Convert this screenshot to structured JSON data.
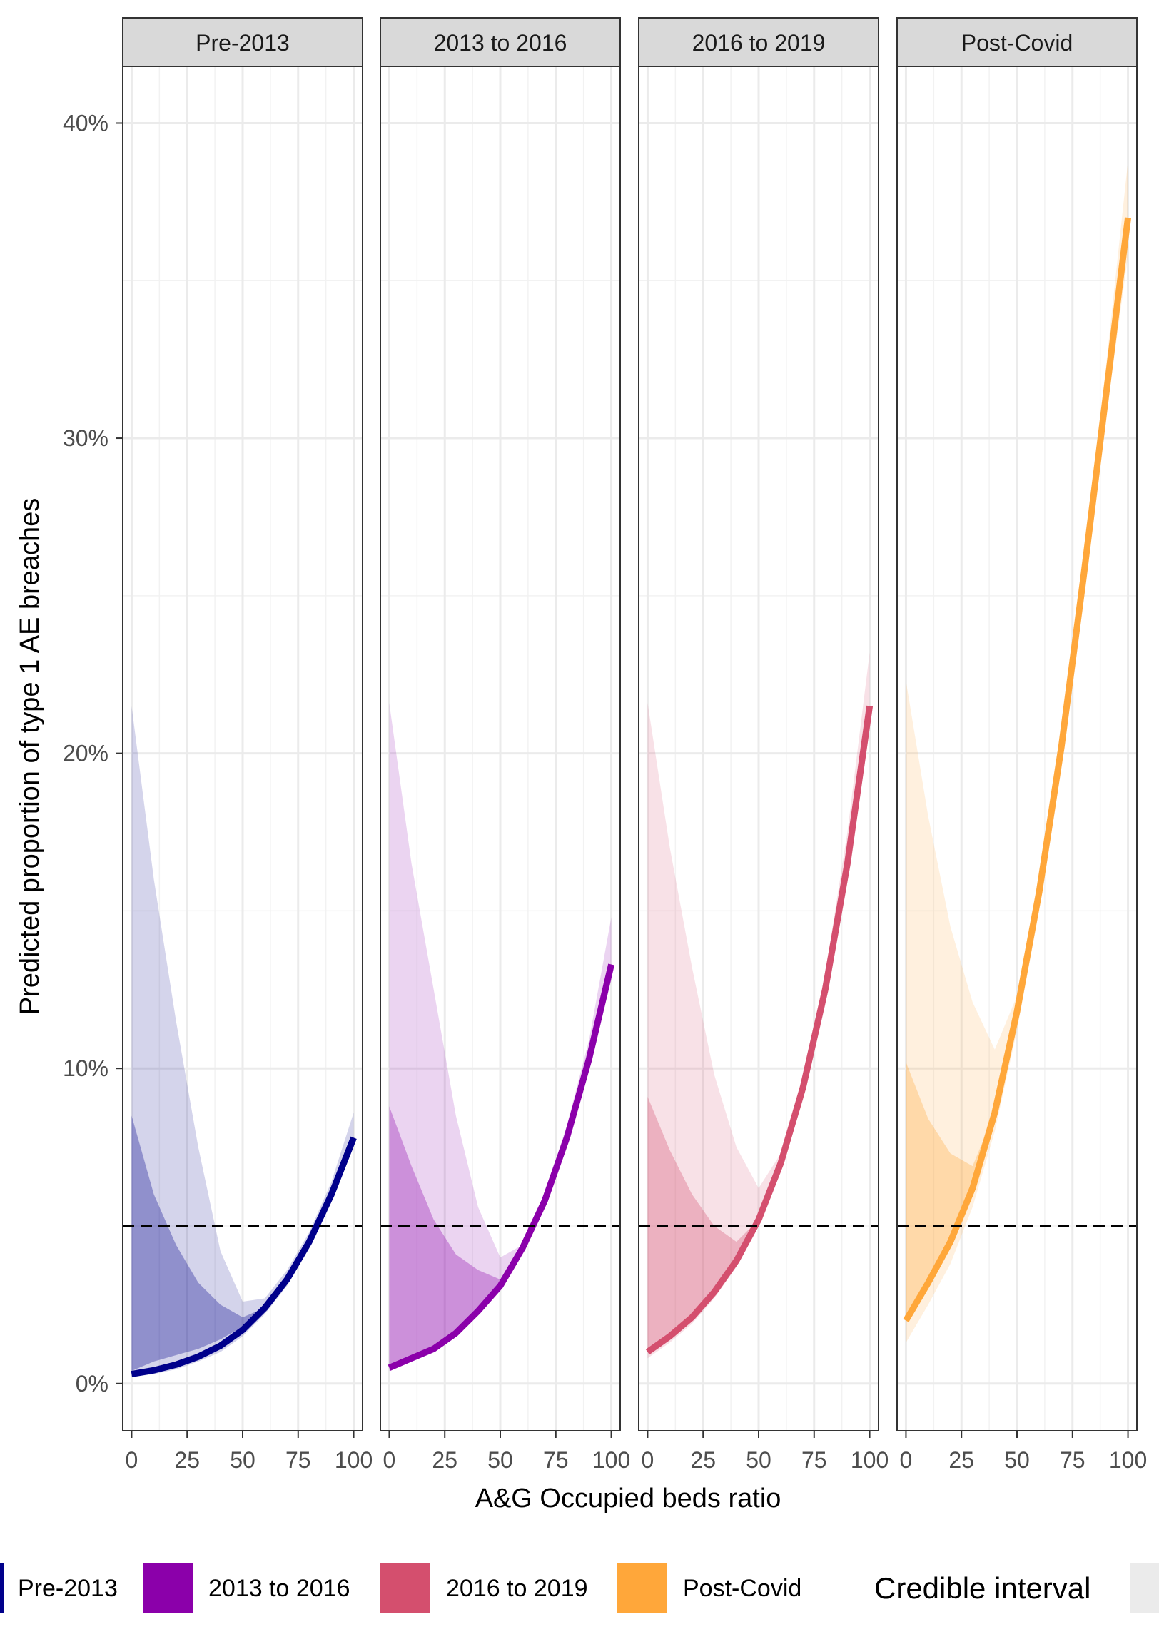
{
  "chart_data": {
    "type": "line",
    "ylabel": "Predicted proportion of type 1 AE breaches",
    "xlabel": "A&G Occupied beds ratio",
    "x_ticks": [
      "0",
      "25",
      "50",
      "75",
      "100"
    ],
    "y_ticks": [
      "0%",
      "10%",
      "20%",
      "30%",
      "40%"
    ],
    "xlim": [
      -4,
      104
    ],
    "ylim": [
      -1.5,
      41.8
    ],
    "grid": true,
    "reference_line": 5,
    "legend_position": "bottom",
    "legend_title": "Credible interval",
    "x": [
      0,
      10,
      20,
      30,
      40,
      50,
      60,
      70,
      80,
      90,
      100
    ],
    "panels": [
      {
        "name": "Pre-2013",
        "color": "#00008b",
        "line": [
          0.3,
          0.42,
          0.6,
          0.85,
          1.2,
          1.7,
          2.4,
          3.3,
          4.5,
          6.0,
          7.8
        ],
        "outer_lower": [
          0.2,
          0.3,
          0.45,
          0.7,
          1.0,
          1.5,
          2.2,
          3.1,
          4.3,
          5.8,
          7.5
        ],
        "outer_upper": [
          21.5,
          16.0,
          11.5,
          7.5,
          4.2,
          2.6,
          2.7,
          3.6,
          4.8,
          6.4,
          8.6
        ],
        "inner_lower": [
          0.4,
          0.7,
          0.9,
          1.1,
          1.4,
          1.8,
          2.4,
          3.3,
          4.5,
          6.0,
          7.8
        ],
        "inner_upper": [
          8.5,
          6.0,
          4.4,
          3.2,
          2.5,
          2.1,
          2.4,
          3.3,
          4.5,
          6.0,
          7.8
        ]
      },
      {
        "name": "2013 to 2016",
        "color": "#8b00aa",
        "line": [
          0.5,
          0.8,
          1.1,
          1.6,
          2.3,
          3.1,
          4.3,
          5.8,
          7.8,
          10.3,
          13.3
        ],
        "outer_lower": [
          0.4,
          0.7,
          1.0,
          1.5,
          2.2,
          3.0,
          4.1,
          5.6,
          7.5,
          10.0,
          12.8
        ],
        "outer_upper": [
          21.6,
          16.5,
          12.5,
          8.5,
          5.6,
          4.0,
          4.4,
          6.0,
          8.2,
          10.9,
          14.8
        ],
        "inner_lower": [
          0.6,
          0.9,
          1.2,
          1.7,
          2.3,
          3.1,
          4.3,
          5.8,
          7.8,
          10.3,
          13.3
        ],
        "inner_upper": [
          8.8,
          6.9,
          5.2,
          4.1,
          3.6,
          3.3,
          4.3,
          5.8,
          7.8,
          10.3,
          13.3
        ]
      },
      {
        "name": "2016 to 2019",
        "color": "#d44f6e",
        "line": [
          1.0,
          1.5,
          2.1,
          2.9,
          3.9,
          5.2,
          7.0,
          9.4,
          12.5,
          16.5,
          21.5
        ],
        "outer_lower": [
          0.8,
          1.3,
          1.9,
          2.7,
          3.7,
          5.0,
          6.7,
          9.0,
          12.0,
          16.0,
          20.8
        ],
        "outer_upper": [
          21.6,
          17.0,
          13.2,
          9.8,
          7.5,
          6.2,
          7.3,
          9.8,
          13.0,
          17.5,
          23.2
        ],
        "inner_lower": [
          1.1,
          1.6,
          2.2,
          3.0,
          4.0,
          5.2,
          7.0,
          9.4,
          12.5,
          16.5,
          21.5
        ],
        "inner_upper": [
          9.1,
          7.4,
          6.0,
          5.0,
          4.5,
          5.2,
          7.0,
          9.4,
          12.5,
          16.5,
          21.5
        ]
      },
      {
        "name": "Post-Covid",
        "color": "#ffa73a",
        "line": [
          2.0,
          3.2,
          4.5,
          6.2,
          8.6,
          11.8,
          15.6,
          20.2,
          25.6,
          31.3,
          37.0
        ],
        "outer_lower": [
          1.3,
          2.5,
          3.8,
          5.6,
          8.0,
          11.2,
          15.0,
          19.6,
          25.0,
          30.6,
          35.8
        ],
        "outer_upper": [
          22.3,
          18.0,
          14.5,
          12.1,
          10.6,
          12.3,
          16.2,
          20.8,
          26.3,
          32.2,
          38.8
        ],
        "inner_lower": [
          2.2,
          3.4,
          4.7,
          6.3,
          8.6,
          11.8,
          15.6,
          20.2,
          25.6,
          31.3,
          37.0
        ],
        "inner_upper": [
          10.2,
          8.4,
          7.3,
          6.9,
          8.6,
          11.8,
          15.6,
          20.2,
          25.6,
          31.3,
          37.0
        ]
      }
    ],
    "legend": [
      "Pre-2013",
      "2013 to 2016",
      "2016 to 2019",
      "Post-Covid"
    ]
  }
}
